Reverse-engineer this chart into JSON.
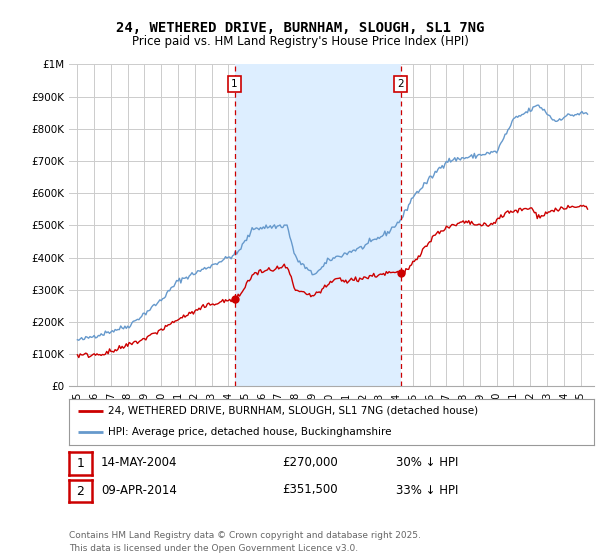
{
  "title": "24, WETHERED DRIVE, BURNHAM, SLOUGH, SL1 7NG",
  "subtitle": "Price paid vs. HM Land Registry's House Price Index (HPI)",
  "legend_line1": "24, WETHERED DRIVE, BURNHAM, SLOUGH, SL1 7NG (detached house)",
  "legend_line2": "HPI: Average price, detached house, Buckinghamshire",
  "footnote": "Contains HM Land Registry data © Crown copyright and database right 2025.\nThis data is licensed under the Open Government Licence v3.0.",
  "sale1_date": "14-MAY-2004",
  "sale1_price": "£270,000",
  "sale1_hpi": "30% ↓ HPI",
  "sale2_date": "09-APR-2014",
  "sale2_price": "£351,500",
  "sale2_hpi": "33% ↓ HPI",
  "vline1_x": 2004.37,
  "vline2_x": 2014.27,
  "marker1_y_red": 270000,
  "marker2_y_red": 351500,
  "red_color": "#cc0000",
  "blue_color": "#6699cc",
  "blue_fill_color": "#ddeeff",
  "vline_color": "#cc0000",
  "background_color": "#ffffff",
  "grid_color": "#cccccc",
  "ylim": [
    0,
    1000000
  ],
  "xlim_start": 1994.5,
  "xlim_end": 2025.8
}
